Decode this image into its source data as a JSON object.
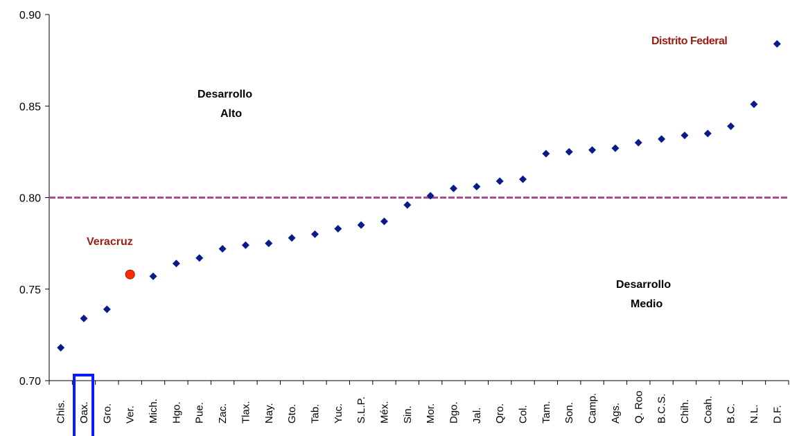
{
  "chart_data": {
    "type": "scatter",
    "title": "",
    "xlabel": "",
    "ylabel": "",
    "ylim": [
      0.7,
      0.9
    ],
    "yticks": [
      "0.70",
      "0.75",
      "0.80",
      "0.85",
      "0.90"
    ],
    "grid": false,
    "categories": [
      "Chis.",
      "Oax.",
      "Gro.",
      "Ver.",
      "Mich.",
      "Hgo.",
      "Pue.",
      "Zac.",
      "Tlax.",
      "Nay.",
      "Gto.",
      "Tab.",
      "Yuc.",
      "S.L.P.",
      "Méx.",
      "Sin.",
      "Mor.",
      "Dgo.",
      "Jal.",
      "Qro.",
      "Col.",
      "Tam.",
      "Son.",
      "Camp.",
      "Ags.",
      "Q. Roo",
      "B.C.S.",
      "Chih.",
      "Coah.",
      "B.C.",
      "N.L.",
      "D.F."
    ],
    "values": [
      0.718,
      0.734,
      0.739,
      0.758,
      0.757,
      0.764,
      0.767,
      0.772,
      0.774,
      0.775,
      0.778,
      0.78,
      0.783,
      0.785,
      0.787,
      0.796,
      0.801,
      0.805,
      0.806,
      0.809,
      0.81,
      0.824,
      0.825,
      0.826,
      0.827,
      0.83,
      0.832,
      0.834,
      0.835,
      0.839,
      0.851,
      0.884
    ],
    "highlight_point": "Ver.",
    "boxed_category": "Oax.",
    "reference_line": 0.8,
    "annotations": {
      "high_line1": "Desarrollo",
      "high_line2": "Alto",
      "medium_line1": "Desarrollo",
      "medium_line2": "Medio",
      "veracruz": "Veracruz",
      "df": "Distrito Federal"
    },
    "colors": {
      "marker": "#0a1a8c",
      "highlight": "#ff2a00",
      "reference_line": "#b04a8a",
      "box": "#0a1aff",
      "annotation_red": "#9b1c12"
    }
  }
}
